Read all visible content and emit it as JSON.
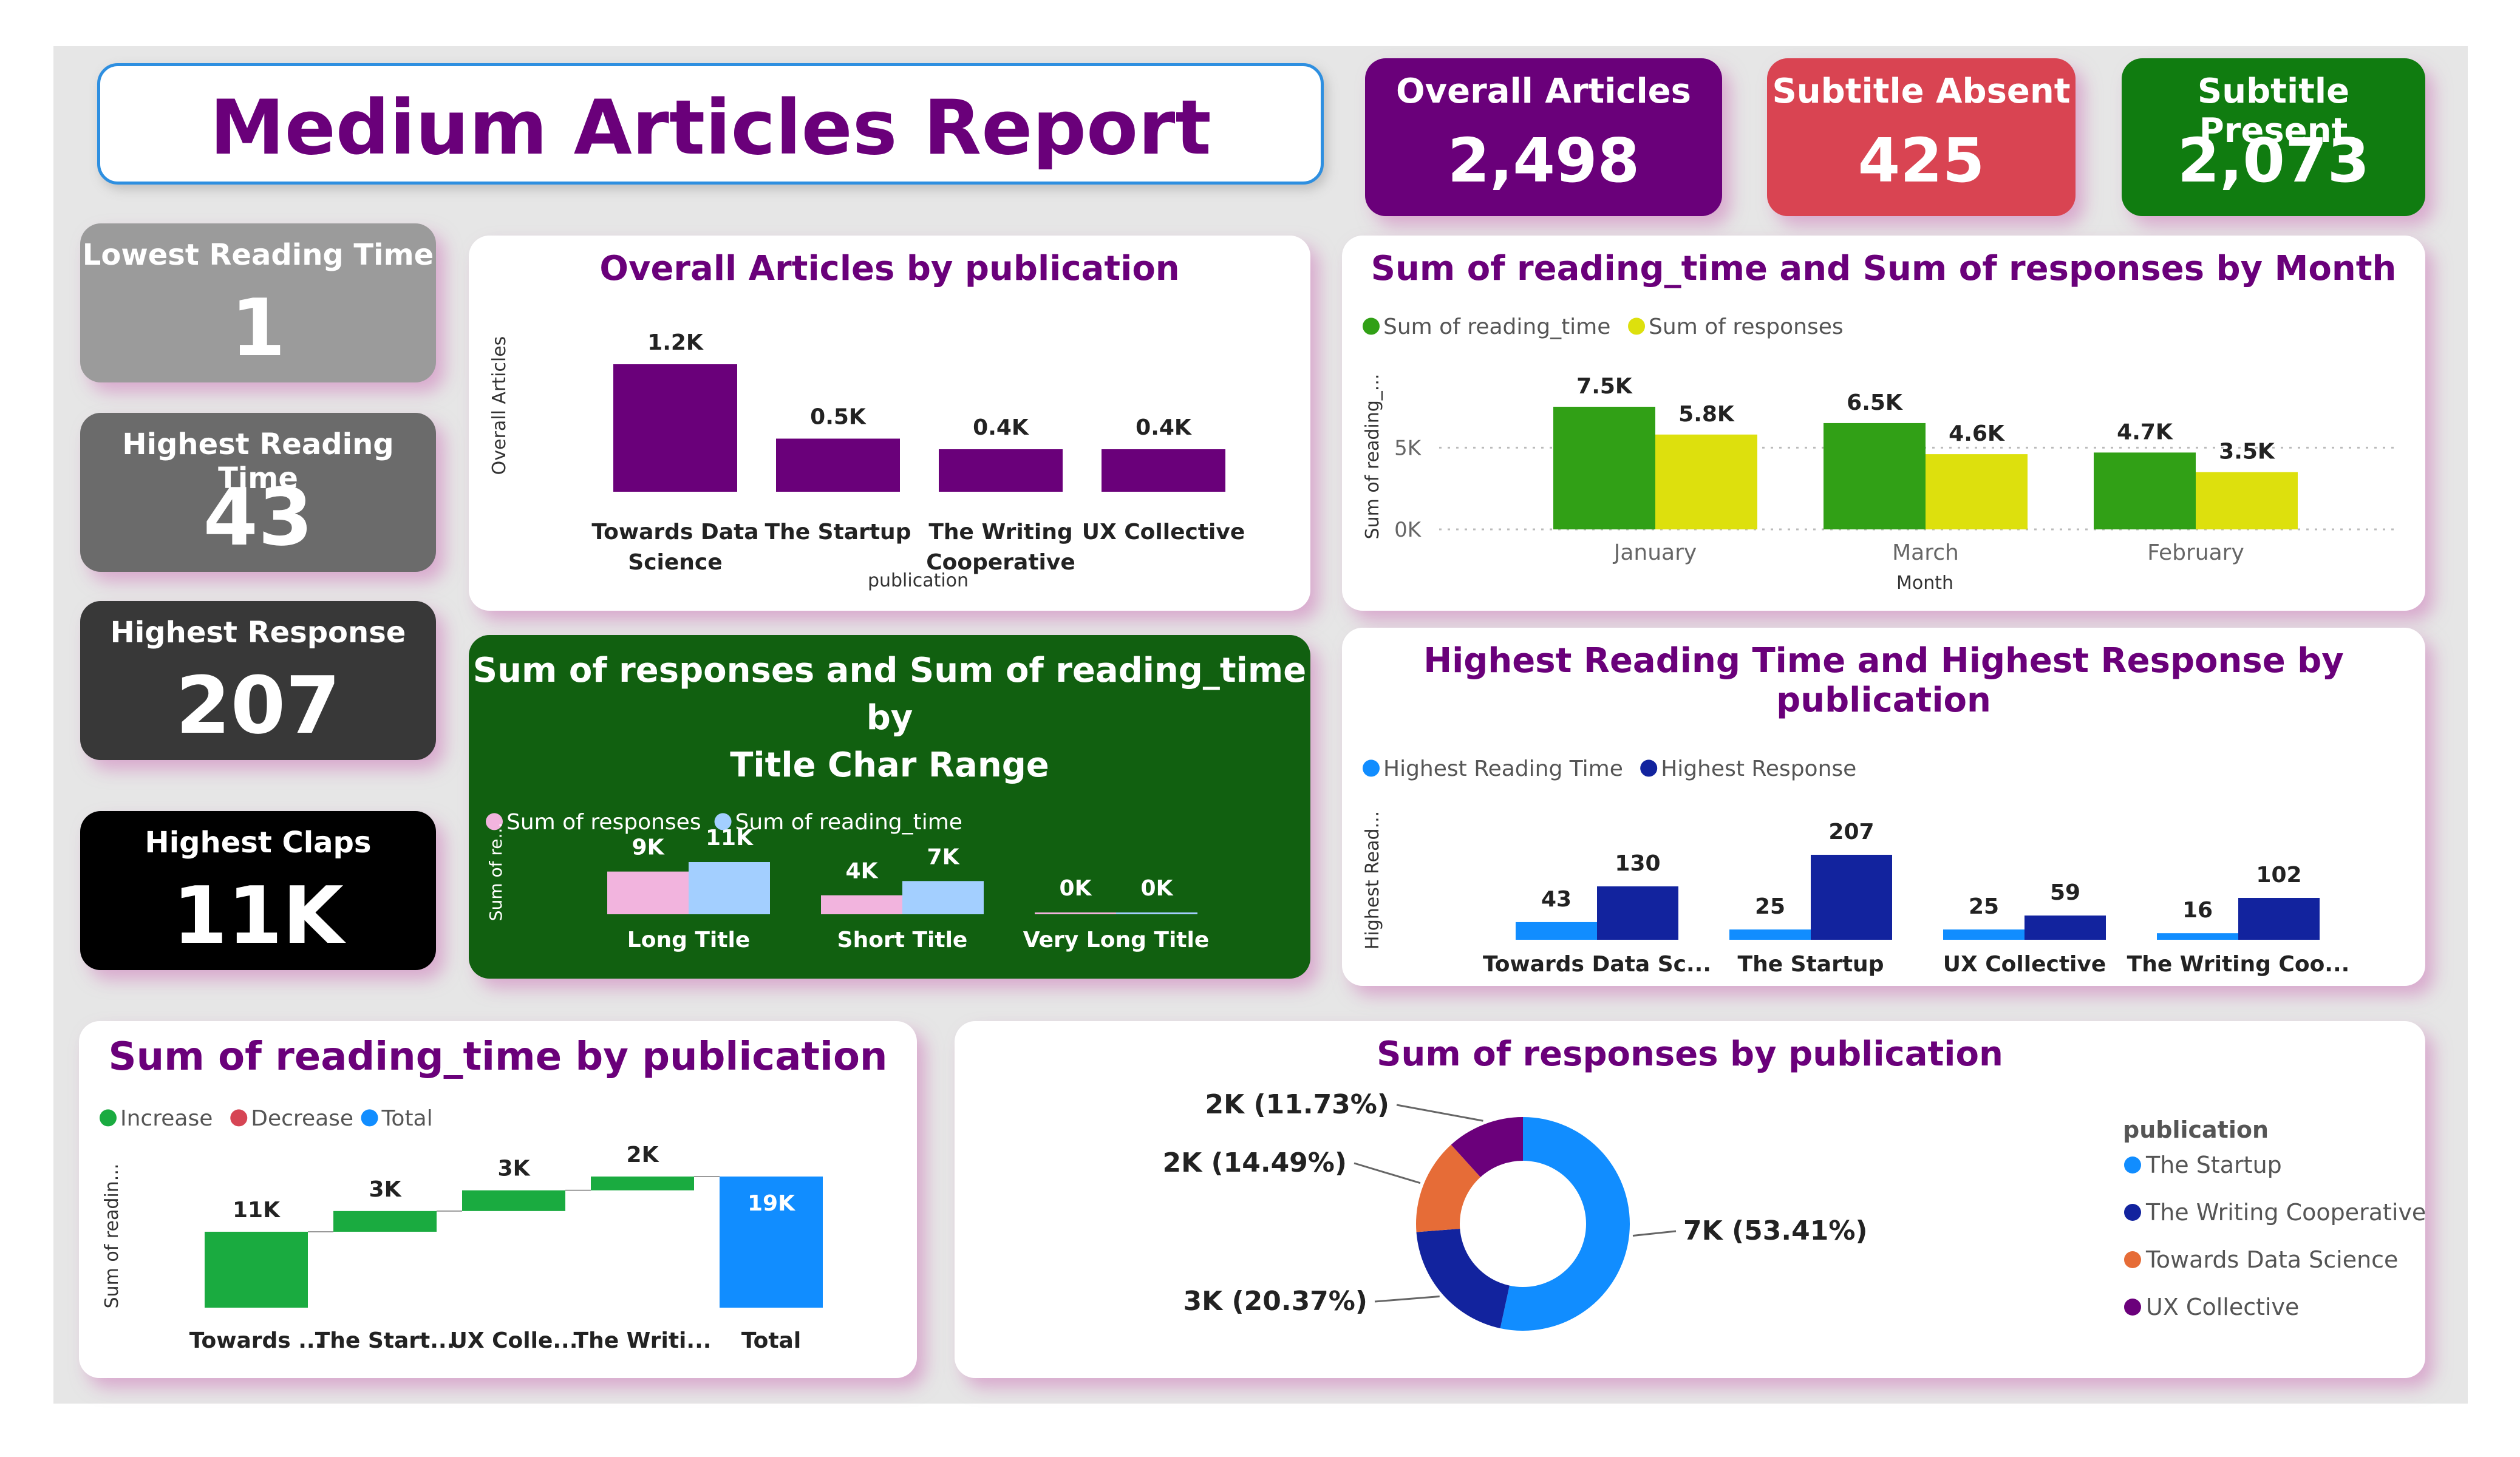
{
  "report_title": "Medium Articles Report",
  "kpis": {
    "overall_articles": {
      "label": "Overall Articles",
      "value": "2,498",
      "color": "#6a007a"
    },
    "subtitle_absent": {
      "label": "Subtitle Absent",
      "value": "425",
      "color": "#d94452"
    },
    "subtitle_present": {
      "label": "Subtitle Present",
      "value": "2,073",
      "color": "#107c10"
    }
  },
  "side_cards": {
    "lowest_reading_time": {
      "label": "Lowest Reading Time",
      "value": "1",
      "color": "#9b9b9b"
    },
    "highest_reading_time": {
      "label": "Highest Reading Time",
      "value": "43",
      "color": "#6b6b6b"
    },
    "highest_response": {
      "label": "Highest Response",
      "value": "207",
      "color": "#383838"
    },
    "highest_claps": {
      "label": "Highest Claps",
      "value": "11K",
      "color": "#000000"
    }
  },
  "chart_data": [
    {
      "id": "articles_by_publication",
      "type": "bar",
      "title": "Overall Articles by publication",
      "xlabel": "publication",
      "ylabel": "Overall Articles",
      "categories": [
        [
          "Towards Data",
          "Science"
        ],
        [
          "The Startup"
        ],
        [
          "The Writing",
          "Cooperative"
        ],
        [
          "UX Collective"
        ]
      ],
      "values": [
        1200,
        500,
        400,
        400
      ],
      "data_labels": [
        "1.2K",
        "0.5K",
        "0.4K",
        "0.4K"
      ],
      "color": "#6a007a",
      "ylim": [
        0,
        1200
      ]
    },
    {
      "id": "reading_time_responses_by_month",
      "type": "bar",
      "title": "Sum of reading_time and Sum of responses by Month",
      "xlabel": "Month",
      "ylabel": "Sum of reading_...",
      "categories": [
        "January",
        "March",
        "February"
      ],
      "series": [
        {
          "name": "Sum of reading_time",
          "values": [
            7500,
            6500,
            4700
          ],
          "labels": [
            "7.5K",
            "6.5K",
            "4.7K"
          ],
          "color": "#31a016"
        },
        {
          "name": "Sum of responses",
          "values": [
            5800,
            4600,
            3500
          ],
          "labels": [
            "5.8K",
            "4.6K",
            "3.5K"
          ],
          "color": "#dde00d"
        }
      ],
      "yticks": [
        "0K",
        "5K"
      ],
      "ytick_values": [
        0,
        5000
      ],
      "ylim": [
        0,
        7500
      ],
      "grid": true,
      "legend": "top-left"
    },
    {
      "id": "responses_reading_time_by_char_range",
      "type": "bar",
      "title": "Sum of responses and Sum of reading_time by Title Char Range",
      "title_lines": [
        "Sum of responses and Sum of reading_time by",
        "Title Char Range"
      ],
      "ylabel": "Sum of re...",
      "categories": [
        "Long Title",
        "Short Title",
        "Very Long Title"
      ],
      "series": [
        {
          "name": "Sum of responses",
          "values": [
            9000,
            4000,
            0
          ],
          "labels": [
            "9K",
            "4K",
            "0K"
          ],
          "color": "#f2b4de"
        },
        {
          "name": "Sum of reading_time",
          "values": [
            11000,
            7000,
            0
          ],
          "labels": [
            "11K",
            "7K",
            "0K"
          ],
          "color": "#a3cfff"
        }
      ],
      "ylim": [
        0,
        11000
      ],
      "background": "#116010",
      "legend": "top-left"
    },
    {
      "id": "highest_rt_response_by_publication",
      "type": "bar",
      "title": "Highest Reading Time and Highest Response by publication",
      "xlabel": "publication",
      "ylabel": "Highest Read...",
      "categories": [
        "Towards Data Sc...",
        "The Startup",
        "UX Collective",
        "The Writing Coo..."
      ],
      "series": [
        {
          "name": "Highest Reading Time",
          "values": [
            43,
            25,
            25,
            16
          ],
          "color": "#118dff"
        },
        {
          "name": "Highest Response",
          "values": [
            130,
            207,
            59,
            102
          ],
          "color": "#12239e"
        }
      ],
      "ylim": [
        0,
        207
      ],
      "legend": "top-left"
    },
    {
      "id": "reading_time_waterfall",
      "type": "bar",
      "subtype": "waterfall",
      "title": "Sum of reading_time by publication",
      "ylabel": "Sum of readin...",
      "categories": [
        "Towards ...",
        "The Start...",
        "UX Colle...",
        "The Writi...",
        "Total"
      ],
      "steps": [
        11000,
        3000,
        3000,
        2000,
        19000
      ],
      "data_labels": [
        "11K",
        "3K",
        "3K",
        "2K",
        "19K"
      ],
      "legend_items": [
        {
          "name": "Increase",
          "color": "#1aab40"
        },
        {
          "name": "Decrease",
          "color": "#d64554"
        },
        {
          "name": "Total",
          "color": "#118dff"
        }
      ],
      "ylim": [
        0,
        19000
      ]
    },
    {
      "id": "responses_by_publication",
      "type": "pie",
      "subtype": "donut",
      "title": "Sum of responses by publication",
      "legend_title": "publication",
      "legend": "right",
      "slices": [
        {
          "name": "The Startup",
          "percent": 53.41,
          "label": "7K (53.41%)",
          "color": "#118dff"
        },
        {
          "name": "The Writing Cooperative",
          "percent": 20.37,
          "label": "3K (20.37%)",
          "color": "#12239e"
        },
        {
          "name": "Towards Data Science",
          "percent": 14.49,
          "label": "2K (14.49%)",
          "color": "#e66c37"
        },
        {
          "name": "UX Collective",
          "percent": 11.73,
          "label": "2K (11.73%)",
          "color": "#6b007b"
        }
      ]
    }
  ]
}
